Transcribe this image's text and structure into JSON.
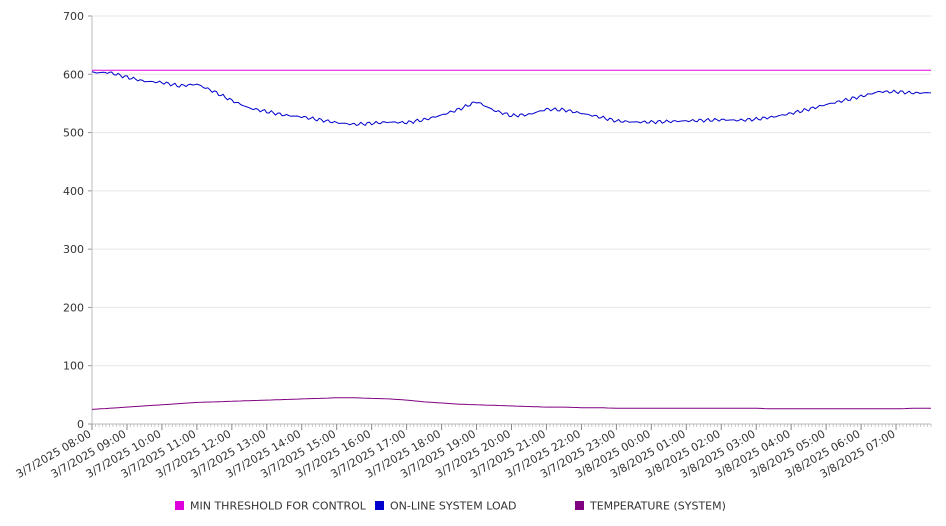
{
  "chart_data": {
    "type": "line",
    "title": "",
    "xlabel": "",
    "ylabel": "",
    "ylim": [
      0,
      700
    ],
    "y_ticks": [
      0,
      100,
      200,
      300,
      400,
      500,
      600,
      700
    ],
    "grid": true,
    "legend_position": "bottom",
    "x_ticks": [
      "3/7/2025 08:00",
      "3/7/2025 09:00",
      "3/7/2025 10:00",
      "3/7/2025 11:00",
      "3/7/2025 12:00",
      "3/7/2025 13:00",
      "3/7/2025 14:00",
      "3/7/2025 15:00",
      "3/7/2025 16:00",
      "3/7/2025 17:00",
      "3/7/2025 18:00",
      "3/7/2025 19:00",
      "3/7/2025 20:00",
      "3/7/2025 21:00",
      "3/7/2025 22:00",
      "3/7/2025 23:00",
      "3/8/2025 00:00",
      "3/8/2025 01:00",
      "3/8/2025 02:00",
      "3/8/2025 03:00",
      "3/8/2025 04:00",
      "3/8/2025 05:00",
      "3/8/2025 06:00",
      "3/8/2025 07:00"
    ],
    "x": [
      "3/7/2025 08:00",
      "3/7/2025 08:30",
      "3/7/2025 09:00",
      "3/7/2025 09:30",
      "3/7/2025 10:00",
      "3/7/2025 10:30",
      "3/7/2025 11:00",
      "3/7/2025 11:30",
      "3/7/2025 12:00",
      "3/7/2025 12:30",
      "3/7/2025 13:00",
      "3/7/2025 13:30",
      "3/7/2025 14:00",
      "3/7/2025 14:30",
      "3/7/2025 15:00",
      "3/7/2025 15:30",
      "3/7/2025 16:00",
      "3/7/2025 16:30",
      "3/7/2025 17:00",
      "3/7/2025 17:30",
      "3/7/2025 18:00",
      "3/7/2025 18:30",
      "3/7/2025 19:00",
      "3/7/2025 19:30",
      "3/7/2025 20:00",
      "3/7/2025 20:30",
      "3/7/2025 21:00",
      "3/7/2025 21:30",
      "3/7/2025 22:00",
      "3/7/2025 22:30",
      "3/7/2025 23:00",
      "3/7/2025 23:30",
      "3/8/2025 00:00",
      "3/8/2025 00:30",
      "3/8/2025 01:00",
      "3/8/2025 01:30",
      "3/8/2025 02:00",
      "3/8/2025 02:30",
      "3/8/2025 03:00",
      "3/8/2025 03:30",
      "3/8/2025 04:00",
      "3/8/2025 04:30",
      "3/8/2025 05:00",
      "3/8/2025 05:30",
      "3/8/2025 06:00",
      "3/8/2025 06:30",
      "3/8/2025 07:00",
      "3/8/2025 07:30",
      "3/8/2025 07:59"
    ],
    "series": [
      {
        "name": "MIN THRESHOLD FOR CONTROL",
        "color": "#dd00dd",
        "values": [
          607,
          607,
          607,
          607,
          607,
          607,
          607,
          607,
          607,
          607,
          607,
          607,
          607,
          607,
          607,
          607,
          607,
          607,
          607,
          607,
          607,
          607,
          607,
          607,
          607,
          607,
          607,
          607,
          607,
          607,
          607,
          607,
          607,
          607,
          607,
          607,
          607,
          607,
          607,
          607,
          607,
          607,
          607,
          607,
          607,
          607,
          607,
          607,
          607
        ]
      },
      {
        "name": "ON-LINE SYSTEM LOAD",
        "color": "#0000cc",
        "values": [
          603,
          603,
          595,
          588,
          586,
          580,
          583,
          570,
          555,
          542,
          536,
          530,
          527,
          522,
          517,
          514,
          516,
          518,
          517,
          522,
          530,
          540,
          553,
          538,
          529,
          531,
          540,
          539,
          533,
          527,
          520,
          518,
          518,
          519,
          520,
          521,
          522,
          521,
          523,
          527,
          533,
          540,
          548,
          555,
          562,
          570,
          570,
          568,
          568
        ]
      },
      {
        "name": "TEMPERATURE (SYSTEM)",
        "color": "#800080",
        "values": [
          25,
          27,
          29,
          31,
          33,
          35,
          37,
          38,
          39,
          40,
          41,
          42,
          43,
          44,
          45,
          45,
          44,
          43,
          41,
          38,
          36,
          34,
          33,
          32,
          31,
          30,
          29,
          29,
          28,
          28,
          27,
          27,
          27,
          27,
          27,
          27,
          27,
          27,
          27,
          26,
          26,
          26,
          26,
          26,
          26,
          26,
          26,
          27,
          27
        ]
      }
    ]
  }
}
